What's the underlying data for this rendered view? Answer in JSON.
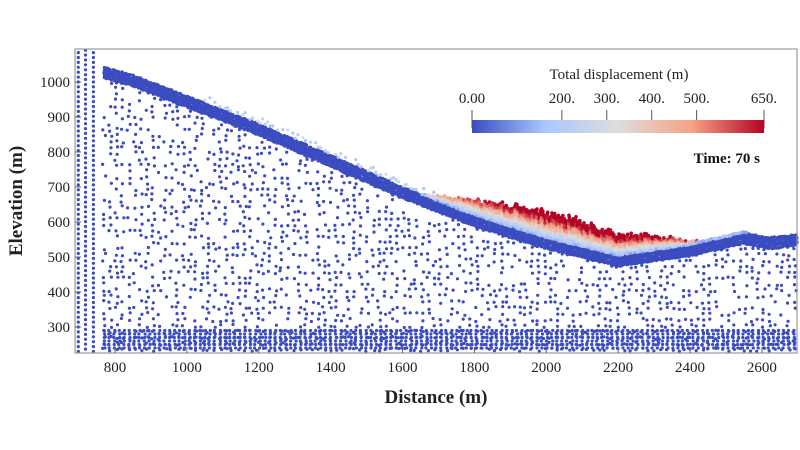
{
  "chart_data": {
    "type": "scatter",
    "title": "",
    "xlabel": "Distance (m)",
    "ylabel": "Elevation (m)",
    "xlim": [
      690,
      2700
    ],
    "ylim": [
      225,
      1090
    ],
    "xticks": [
      800,
      1000,
      1200,
      1400,
      1600,
      1800,
      2000,
      2200,
      2400,
      2600
    ],
    "yticks": [
      300,
      400,
      500,
      600,
      700,
      800,
      900,
      1000
    ],
    "grid": false,
    "time_label": "Time: 70 s",
    "colorbar": {
      "title": "Total displacement (m)",
      "range": [
        0,
        650
      ],
      "tick_values": [
        0,
        200,
        300,
        400,
        500,
        650
      ],
      "tick_labels": [
        "0.00",
        "200.",
        "300.",
        "400.",
        "500.",
        "650."
      ],
      "colors": [
        "#3b4cc0",
        "#aac7fd",
        "#dddddd",
        "#f6a385",
        "#b40426"
      ],
      "placement": "top-right"
    },
    "ground_surface": {
      "x": [
        760,
        850,
        1000,
        1200,
        1400,
        1600,
        1800,
        2000,
        2200,
        2400,
        2550,
        2620,
        2700
      ],
      "y": [
        1045,
        1020,
        960,
        880,
        790,
        700,
        620,
        555,
        505,
        535,
        570,
        555,
        565
      ]
    },
    "deposit": {
      "x_range": [
        1650,
        2560
      ],
      "max_thickness": 75,
      "max_displacement": 650
    },
    "scattered_particles": {
      "x_range": [
        1050,
        1700
      ],
      "displacement_range": [
        150,
        320
      ]
    }
  }
}
